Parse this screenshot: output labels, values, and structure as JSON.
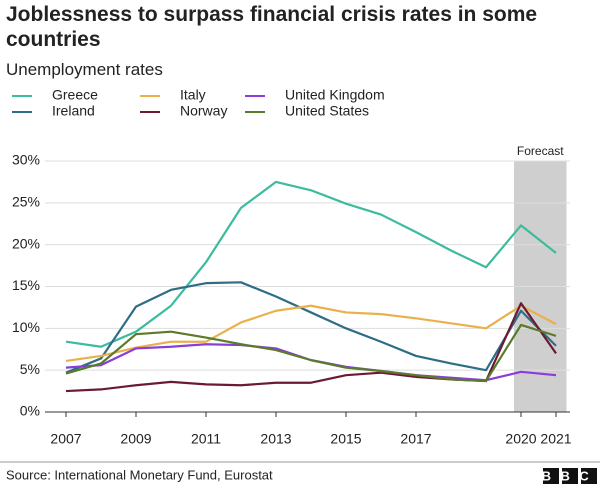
{
  "chart_data": {
    "type": "line",
    "title": "Joblessness to surpass financial crisis rates in some countries",
    "subtitle": "Unemployment rates",
    "x": [
      2007,
      2008,
      2009,
      2010,
      2011,
      2012,
      2013,
      2014,
      2015,
      2016,
      2017,
      2018,
      2019,
      2020,
      2021
    ],
    "xlim": [
      2006.4,
      2021.4
    ],
    "xticks": [
      2007,
      2009,
      2011,
      2013,
      2015,
      2017,
      2020,
      2021
    ],
    "ylim": [
      0,
      30
    ],
    "yticks": [
      {
        "value": 0,
        "label": "0%"
      },
      {
        "value": 5,
        "label": "5%"
      },
      {
        "value": 10,
        "label": "10%"
      },
      {
        "value": 15,
        "label": "15%"
      },
      {
        "value": 20,
        "label": "20%"
      },
      {
        "value": 25,
        "label": "25%"
      },
      {
        "value": 30,
        "label": "30%"
      }
    ],
    "grid": true,
    "forecast": {
      "label": "Forecast",
      "range": [
        2019.8,
        2021.3
      ]
    },
    "series": [
      {
        "name": "Greece",
        "color": "#3dbb9e",
        "values": [
          8.4,
          7.8,
          9.6,
          12.7,
          17.9,
          24.4,
          27.5,
          26.5,
          24.9,
          23.6,
          21.5,
          19.3,
          17.3,
          22.3,
          19.0
        ]
      },
      {
        "name": "Ireland",
        "color": "#2f6d86",
        "values": [
          4.7,
          6.4,
          12.6,
          14.6,
          15.4,
          15.5,
          13.8,
          11.9,
          10.0,
          8.4,
          6.7,
          5.8,
          5.0,
          12.1,
          7.9
        ]
      },
      {
        "name": "Italy",
        "color": "#e9b04c",
        "values": [
          6.1,
          6.7,
          7.7,
          8.4,
          8.4,
          10.7,
          12.1,
          12.7,
          11.9,
          11.7,
          11.2,
          10.6,
          10.0,
          12.7,
          10.5
        ]
      },
      {
        "name": "Norway",
        "color": "#6a1b31",
        "values": [
          2.5,
          2.7,
          3.2,
          3.6,
          3.3,
          3.2,
          3.5,
          3.5,
          4.4,
          4.7,
          4.2,
          3.9,
          3.7,
          13.0,
          7.0
        ]
      },
      {
        "name": "United Kingdom",
        "color": "#8a3ddb",
        "values": [
          5.3,
          5.6,
          7.6,
          7.8,
          8.1,
          8.0,
          7.6,
          6.2,
          5.4,
          4.9,
          4.4,
          4.1,
          3.8,
          4.8,
          4.4
        ]
      },
      {
        "name": "United States",
        "color": "#5b7a2b",
        "values": [
          4.6,
          5.8,
          9.3,
          9.6,
          8.9,
          8.1,
          7.4,
          6.2,
          5.3,
          4.9,
          4.4,
          3.9,
          3.7,
          10.4,
          9.1
        ]
      }
    ],
    "source": "Source: International Monetary Fund, Eurostat",
    "logo": "BBC"
  }
}
